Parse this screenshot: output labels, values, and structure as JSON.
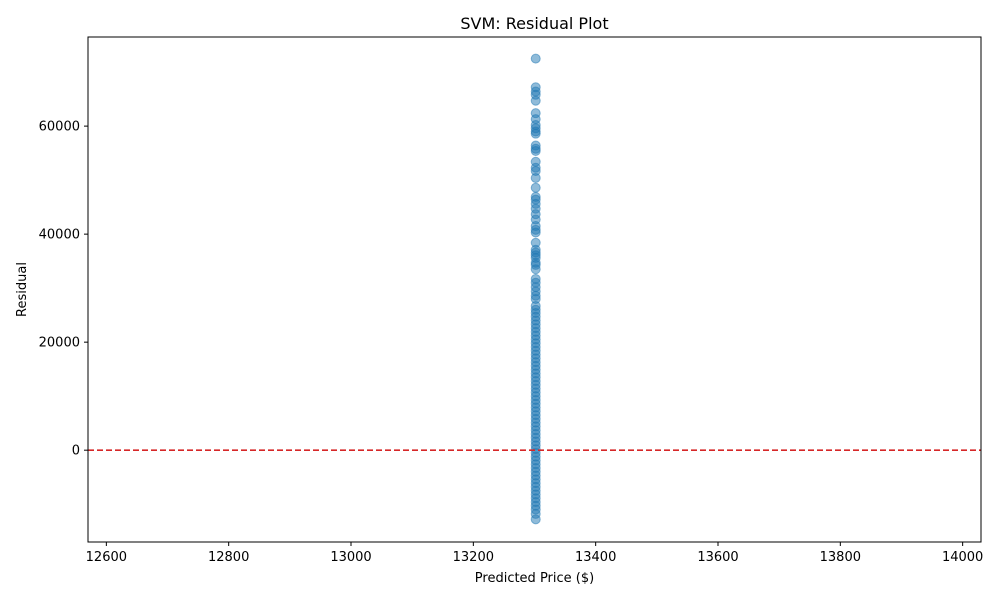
{
  "chart_data": {
    "type": "scatter",
    "title": "SVM: Residual Plot",
    "xlabel": "Predicted Price ($)",
    "ylabel": "Residual",
    "xlim": [
      12570,
      14030
    ],
    "ylim": [
      -17000,
      76500
    ],
    "x_ticks": [
      12600,
      12800,
      13000,
      13200,
      13400,
      13600,
      13800,
      14000
    ],
    "y_ticks": [
      0,
      20000,
      40000,
      60000
    ],
    "grid": false,
    "legend": "none",
    "reference_line": {
      "y": 0,
      "style": "dashed",
      "color": "#d62728"
    },
    "series": [
      {
        "color": "#1f77b4",
        "alpha": 0.5,
        "x_constant": 13302,
        "y": [
          72500,
          67200,
          66400,
          65800,
          64700,
          62400,
          61300,
          60200,
          59600,
          59000,
          58600,
          56400,
          55800,
          55400,
          53400,
          52300,
          51700,
          50400,
          48600,
          46900,
          46400,
          45600,
          44700,
          43700,
          42700,
          41500,
          40800,
          40300,
          38400,
          37100,
          36600,
          36100,
          35600,
          34700,
          34300,
          33500,
          31700,
          31000,
          30200,
          29400,
          28600,
          28000,
          26700,
          26000,
          25400,
          24700,
          24000,
          23300,
          22600,
          21900,
          21200,
          20500,
          19800,
          19100,
          18400,
          17700,
          17000,
          16300,
          15600,
          14900,
          14200,
          13500,
          12800,
          12100,
          11400,
          10700,
          10000,
          9300,
          8600,
          7900,
          7200,
          6500,
          5800,
          5100,
          4400,
          3700,
          3000,
          2300,
          1600,
          900,
          200,
          -500,
          -1200,
          -1900,
          -2600,
          -3300,
          -4000,
          -4700,
          -5400,
          -6100,
          -6800,
          -7500,
          -8200,
          -8900,
          -9600,
          -10300,
          -11000,
          -11800,
          -12800
        ]
      }
    ]
  }
}
